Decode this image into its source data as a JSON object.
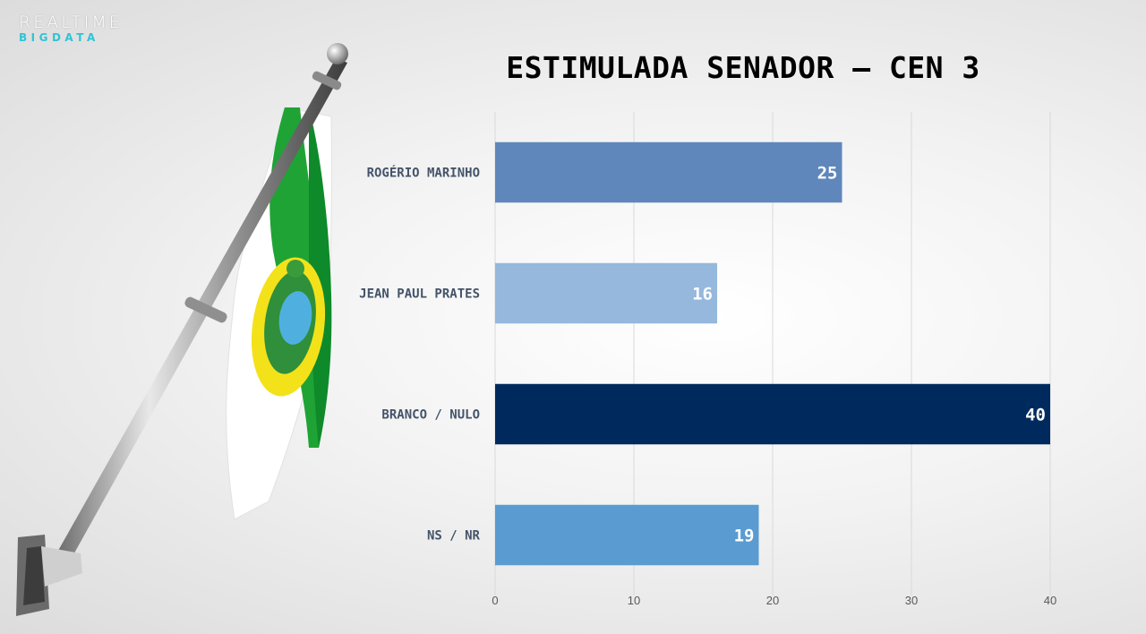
{
  "logo": {
    "line1": "REALTIME",
    "line2": "BIGDATA"
  },
  "chart_data": {
    "type": "bar",
    "orientation": "horizontal",
    "title": "ESTIMULADA SENADOR – CEN 3",
    "categories": [
      "ROGÉRIO MARINHO",
      "JEAN PAUL PRATES",
      "BRANCO / NULO",
      "NS / NR"
    ],
    "values": [
      25,
      16,
      40,
      19
    ],
    "colors": [
      "#5f87bb",
      "#95b8dc",
      "#002a5e",
      "#5a9bd2"
    ],
    "xlim": [
      0,
      40
    ],
    "xticks": [
      0,
      10,
      20,
      30,
      40
    ],
    "grid": true,
    "xlabel": "",
    "ylabel": ""
  }
}
